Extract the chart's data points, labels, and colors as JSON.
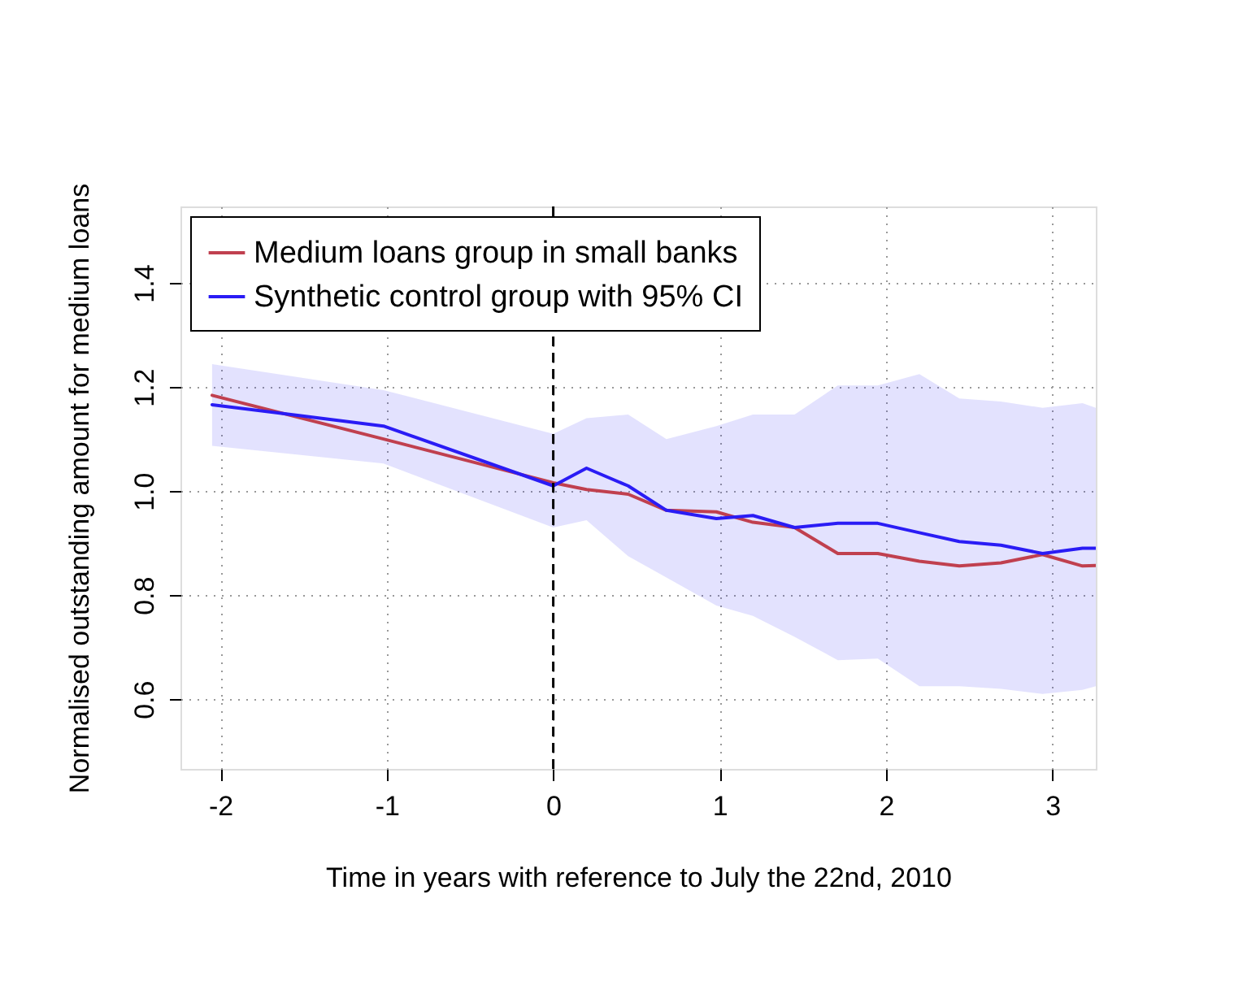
{
  "chart_data": {
    "type": "line",
    "xlabel": "Time in years with reference to July the 22nd, 2010",
    "ylabel": "Normalised outstanding amount for medium loans",
    "x": [
      -2.05,
      -1.02,
      0,
      0.2,
      0.45,
      0.68,
      0.98,
      1.2,
      1.45,
      1.71,
      1.95,
      2.2,
      2.44,
      2.69,
      2.94,
      3.18,
      3.26
    ],
    "series": [
      {
        "name": "Medium loans group in small banks",
        "color": "#c0404f",
        "values": [
          1.184,
          1.1,
          1.016,
          1.003,
          0.994,
          0.963,
          0.96,
          0.94,
          0.93,
          0.88,
          0.88,
          0.865,
          0.856,
          0.862,
          0.878,
          0.856,
          0.857
        ]
      },
      {
        "name": "Synthetic control group with 95% CI",
        "color": "#2a1cf5",
        "values": [
          1.166,
          1.125,
          1.01,
          1.044,
          1.01,
          0.963,
          0.947,
          0.953,
          0.93,
          0.938,
          0.938,
          0.92,
          0.903,
          0.896,
          0.88,
          0.89,
          0.89
        ],
        "lower": [
          1.087,
          1.053,
          0.93,
          0.944,
          0.875,
          0.834,
          0.78,
          0.76,
          0.72,
          0.675,
          0.678,
          0.625,
          0.625,
          0.62,
          0.61,
          0.618,
          0.625
        ],
        "upper": [
          1.244,
          1.194,
          1.11,
          1.14,
          1.147,
          1.1,
          1.125,
          1.147,
          1.147,
          1.203,
          1.203,
          1.225,
          1.178,
          1.172,
          1.16,
          1.169,
          1.16
        ]
      }
    ],
    "xlim": [
      -2.24,
      3.26
    ],
    "xticks": [
      -2,
      -1,
      0,
      1,
      2,
      3
    ],
    "ylim": [
      0.466,
      1.547
    ],
    "yticks": [
      0.6,
      0.8,
      {
        "value": 1,
        "label": "1.0"
      },
      1.2,
      1.4
    ],
    "ref_lines": [
      {
        "axis": "x",
        "value": 0,
        "color": "#000000",
        "line_style": "dashed"
      }
    ],
    "grid": true,
    "legend": "top left",
    "line_style": "solid",
    "marker": "none"
  }
}
